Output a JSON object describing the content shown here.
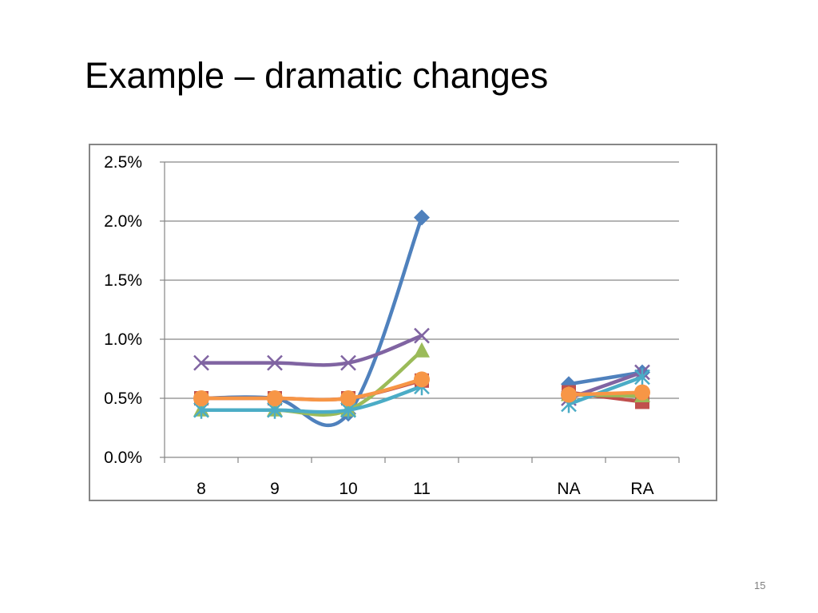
{
  "slide": {
    "title": "Example – dramatic changes",
    "page_number": "15"
  },
  "chart_data": {
    "type": "line",
    "title": "",
    "xlabel": "",
    "ylabel": "",
    "categories": [
      "8",
      "9",
      "10",
      "11",
      "",
      "NA",
      "RA"
    ],
    "ylim": [
      0,
      0.025
    ],
    "y_ticks": [
      0,
      0.005,
      0.01,
      0.015,
      0.02,
      0.025
    ],
    "y_tick_labels": [
      "0.0%",
      "0.5%",
      "1.0%",
      "1.5%",
      "2.0%",
      "2.5%"
    ],
    "grid": true,
    "legend": "none",
    "series": [
      {
        "color": "#4f81bd",
        "marker": "diamond",
        "values": [
          0.005,
          0.005,
          0.0037,
          0.0203,
          null,
          0.0062,
          0.0072
        ]
      },
      {
        "color": "#c0504d",
        "marker": "square",
        "values": [
          0.005,
          0.005,
          0.005,
          0.0065,
          null,
          0.0055,
          0.0047
        ]
      },
      {
        "color": "#9bbb59",
        "marker": "triangle",
        "values": [
          0.004,
          0.004,
          0.004,
          0.009,
          null,
          0.0053,
          0.0052
        ]
      },
      {
        "color": "#8064a2",
        "marker": "x",
        "values": [
          0.008,
          0.008,
          0.008,
          0.0103,
          null,
          0.005,
          0.0072
        ]
      },
      {
        "color": "#4bacc6",
        "marker": "star",
        "values": [
          0.004,
          0.004,
          0.004,
          0.006,
          null,
          0.0045,
          0.0068
        ]
      },
      {
        "color": "#f79646",
        "marker": "circle",
        "values": [
          0.005,
          0.005,
          0.005,
          0.0066,
          null,
          0.0053,
          0.0055
        ]
      }
    ]
  }
}
